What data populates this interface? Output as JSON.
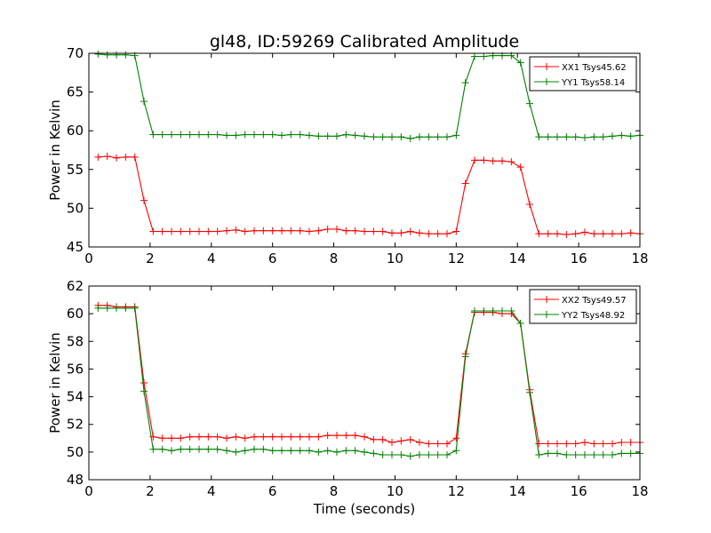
{
  "title": "gl48, ID:59269 Calibrated Amplitude",
  "chart_data": [
    {
      "type": "line",
      "ylabel": "Power in Kelvin",
      "xlabel": "",
      "xlim": [
        0,
        18
      ],
      "ylim": [
        45,
        70
      ],
      "xticks": [
        "0",
        "2",
        "4",
        "6",
        "8",
        "10",
        "12",
        "14",
        "16",
        "18"
      ],
      "yticks": [
        "45",
        "50",
        "55",
        "60",
        "65",
        "70"
      ],
      "grid": false,
      "legend_position": "top-right",
      "series": [
        {
          "name": "XX1 Tsys45.62",
          "color": "#ff0000",
          "x": [
            0.3,
            0.6,
            0.9,
            1.2,
            1.5,
            1.8,
            2.1,
            2.4,
            2.7,
            3.0,
            3.3,
            3.6,
            3.9,
            4.2,
            4.5,
            4.8,
            5.1,
            5.4,
            5.7,
            6.0,
            6.3,
            6.6,
            6.9,
            7.2,
            7.5,
            7.8,
            8.1,
            8.4,
            8.7,
            9.0,
            9.3,
            9.6,
            9.9,
            10.2,
            10.5,
            10.8,
            11.1,
            11.4,
            11.7,
            12.0,
            12.3,
            12.6,
            12.9,
            13.2,
            13.5,
            13.8,
            14.1,
            14.4,
            14.7,
            15.0,
            15.3,
            15.6,
            15.9,
            16.2,
            16.5,
            16.8,
            17.1,
            17.4,
            17.7,
            18.0
          ],
          "y": [
            56.6,
            56.7,
            56.5,
            56.6,
            56.6,
            51.0,
            47.0,
            47.0,
            47.0,
            47.0,
            47.0,
            47.0,
            47.0,
            47.0,
            47.1,
            47.2,
            47.0,
            47.1,
            47.1,
            47.1,
            47.1,
            47.1,
            47.1,
            47.0,
            47.1,
            47.3,
            47.3,
            47.1,
            47.1,
            47.0,
            47.0,
            47.0,
            46.8,
            46.8,
            47.0,
            46.8,
            46.7,
            46.7,
            46.7,
            47.0,
            53.2,
            56.2,
            56.2,
            56.1,
            56.1,
            56.0,
            55.3,
            50.5,
            46.7,
            46.7,
            46.7,
            46.6,
            46.7,
            46.9,
            46.7,
            46.7,
            46.7,
            46.7,
            46.8,
            46.7
          ]
        },
        {
          "name": "YY1 Tsys58.14",
          "color": "#008000",
          "x": [
            0.3,
            0.6,
            0.9,
            1.2,
            1.5,
            1.8,
            2.1,
            2.4,
            2.7,
            3.0,
            3.3,
            3.6,
            3.9,
            4.2,
            4.5,
            4.8,
            5.1,
            5.4,
            5.7,
            6.0,
            6.3,
            6.6,
            6.9,
            7.2,
            7.5,
            7.8,
            8.1,
            8.4,
            8.7,
            9.0,
            9.3,
            9.6,
            9.9,
            10.2,
            10.5,
            10.8,
            11.1,
            11.4,
            11.7,
            12.0,
            12.3,
            12.6,
            12.9,
            13.2,
            13.5,
            13.8,
            14.1,
            14.4,
            14.7,
            15.0,
            15.3,
            15.6,
            15.9,
            16.2,
            16.5,
            16.8,
            17.1,
            17.4,
            17.7,
            18.0
          ],
          "y": [
            69.9,
            69.8,
            69.8,
            69.8,
            69.7,
            63.8,
            59.5,
            59.5,
            59.5,
            59.5,
            59.5,
            59.5,
            59.5,
            59.5,
            59.4,
            59.4,
            59.5,
            59.5,
            59.5,
            59.5,
            59.4,
            59.5,
            59.5,
            59.4,
            59.3,
            59.3,
            59.3,
            59.5,
            59.4,
            59.3,
            59.2,
            59.2,
            59.2,
            59.2,
            59.0,
            59.2,
            59.2,
            59.2,
            59.2,
            59.4,
            66.2,
            69.6,
            69.6,
            69.7,
            69.7,
            69.7,
            68.8,
            63.5,
            59.2,
            59.2,
            59.2,
            59.2,
            59.2,
            59.1,
            59.2,
            59.2,
            59.3,
            59.4,
            59.3,
            59.4
          ]
        }
      ]
    },
    {
      "type": "line",
      "ylabel": "Power in Kelvin",
      "xlabel": "Time (seconds)",
      "xlim": [
        0,
        18
      ],
      "ylim": [
        48,
        62
      ],
      "xticks": [
        "0",
        "2",
        "4",
        "6",
        "8",
        "10",
        "12",
        "14",
        "16",
        "18"
      ],
      "yticks": [
        "48",
        "50",
        "52",
        "54",
        "56",
        "58",
        "60",
        "62"
      ],
      "grid": false,
      "legend_position": "top-right",
      "series": [
        {
          "name": "XX2 Tsys49.57",
          "color": "#ff0000",
          "x": [
            0.3,
            0.6,
            0.9,
            1.2,
            1.5,
            1.8,
            2.1,
            2.4,
            2.7,
            3.0,
            3.3,
            3.6,
            3.9,
            4.2,
            4.5,
            4.8,
            5.1,
            5.4,
            5.7,
            6.0,
            6.3,
            6.6,
            6.9,
            7.2,
            7.5,
            7.8,
            8.1,
            8.4,
            8.7,
            9.0,
            9.3,
            9.6,
            9.9,
            10.2,
            10.5,
            10.8,
            11.1,
            11.4,
            11.7,
            12.0,
            12.3,
            12.6,
            12.9,
            13.2,
            13.5,
            13.8,
            14.1,
            14.4,
            14.7,
            15.0,
            15.3,
            15.6,
            15.9,
            16.2,
            16.5,
            16.8,
            17.1,
            17.4,
            17.7,
            18.0
          ],
          "y": [
            60.6,
            60.6,
            60.5,
            60.5,
            60.5,
            55.0,
            51.1,
            51.0,
            51.0,
            51.0,
            51.1,
            51.1,
            51.1,
            51.1,
            51.0,
            51.1,
            51.0,
            51.1,
            51.1,
            51.1,
            51.1,
            51.1,
            51.1,
            51.1,
            51.1,
            51.2,
            51.2,
            51.2,
            51.2,
            51.1,
            50.9,
            50.9,
            50.7,
            50.8,
            50.9,
            50.7,
            50.6,
            50.6,
            50.6,
            51.0,
            57.1,
            60.1,
            60.1,
            60.1,
            60.0,
            60.0,
            59.3,
            54.5,
            50.6,
            50.6,
            50.6,
            50.6,
            50.6,
            50.7,
            50.6,
            50.6,
            50.6,
            50.7,
            50.7,
            50.7
          ]
        },
        {
          "name": "YY2 Tsys48.92",
          "color": "#008000",
          "x": [
            0.3,
            0.6,
            0.9,
            1.2,
            1.5,
            1.8,
            2.1,
            2.4,
            2.7,
            3.0,
            3.3,
            3.6,
            3.9,
            4.2,
            4.5,
            4.8,
            5.1,
            5.4,
            5.7,
            6.0,
            6.3,
            6.6,
            6.9,
            7.2,
            7.5,
            7.8,
            8.1,
            8.4,
            8.7,
            9.0,
            9.3,
            9.6,
            9.9,
            10.2,
            10.5,
            10.8,
            11.1,
            11.4,
            11.7,
            12.0,
            12.3,
            12.6,
            12.9,
            13.2,
            13.5,
            13.8,
            14.1,
            14.4,
            14.7,
            15.0,
            15.3,
            15.6,
            15.9,
            16.2,
            16.5,
            16.8,
            17.1,
            17.4,
            17.7,
            18.0
          ],
          "y": [
            60.4,
            60.4,
            60.4,
            60.4,
            60.4,
            54.4,
            50.2,
            50.2,
            50.1,
            50.2,
            50.2,
            50.2,
            50.2,
            50.2,
            50.1,
            50.0,
            50.1,
            50.2,
            50.2,
            50.1,
            50.1,
            50.1,
            50.1,
            50.1,
            50.0,
            50.1,
            50.0,
            50.1,
            50.1,
            50.0,
            49.9,
            49.8,
            49.8,
            49.8,
            49.7,
            49.8,
            49.8,
            49.8,
            49.8,
            50.1,
            56.9,
            60.2,
            60.2,
            60.2,
            60.2,
            60.2,
            59.3,
            54.3,
            49.8,
            49.9,
            49.9,
            49.8,
            49.8,
            49.8,
            49.8,
            49.8,
            49.8,
            49.9,
            49.9,
            49.9
          ]
        }
      ]
    }
  ]
}
